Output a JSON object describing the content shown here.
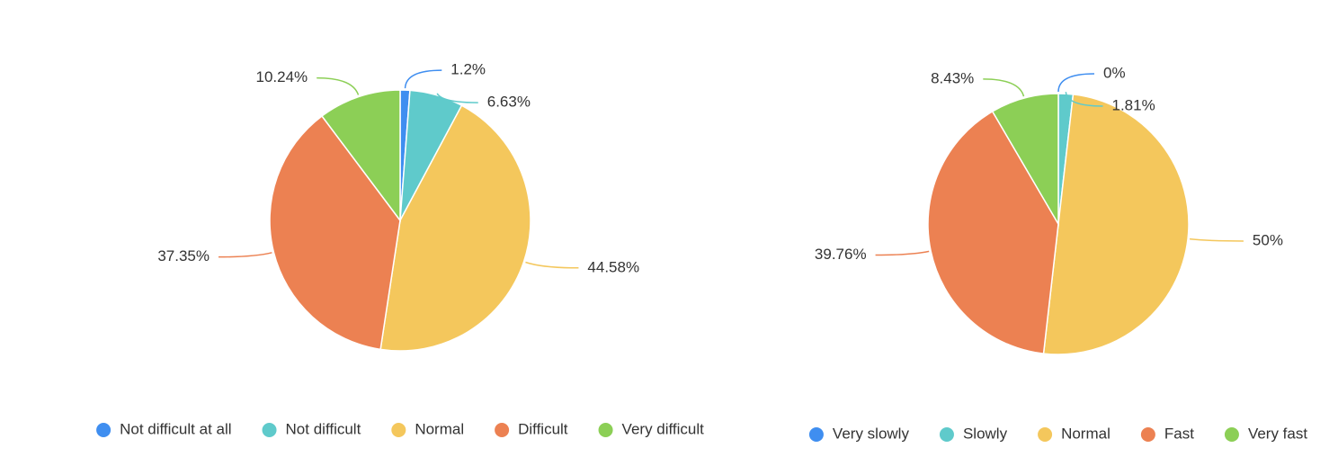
{
  "chart_data": [
    {
      "type": "pie",
      "categories": [
        "Not difficult at all",
        "Not difficult",
        "Normal",
        "Difficult",
        "Very difficult"
      ],
      "values": [
        1.2,
        6.63,
        44.58,
        37.35,
        10.24
      ],
      "value_labels": [
        "1.2%",
        "6.63%",
        "44.58%",
        "37.35%",
        "10.24%"
      ],
      "colors": [
        "#3f8ef0",
        "#5fcacb",
        "#f4c75c",
        "#ec8152",
        "#8ccf56"
      ]
    },
    {
      "type": "pie",
      "categories": [
        "Very slowly",
        "Slowly",
        "Normal",
        "Fast",
        "Very fast"
      ],
      "values": [
        0,
        1.81,
        50,
        39.76,
        8.43
      ],
      "value_labels": [
        "0%",
        "1.81%",
        "50%",
        "39.76%",
        "8.43%"
      ],
      "colors": [
        "#3f8ef0",
        "#5fcacb",
        "#f4c75c",
        "#ec8152",
        "#8ccf56"
      ]
    }
  ]
}
